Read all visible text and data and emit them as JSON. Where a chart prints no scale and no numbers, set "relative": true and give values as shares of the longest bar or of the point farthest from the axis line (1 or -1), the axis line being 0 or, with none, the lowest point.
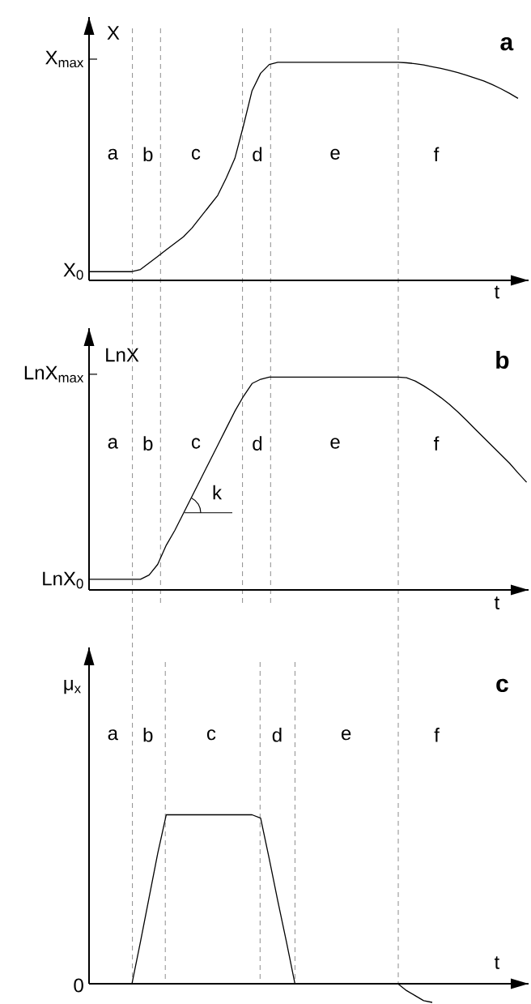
{
  "chart_data": [
    {
      "type": "line",
      "title": "a",
      "xlabel": "t",
      "ylabel": "X",
      "relative": true,
      "grid": "x",
      "categories": [
        null,
        null,
        null,
        null,
        null,
        null,
        null,
        null,
        null,
        null,
        null,
        null,
        null,
        null,
        null,
        null,
        null,
        null,
        null,
        null,
        null,
        null,
        null,
        null,
        null,
        null,
        null,
        null,
        null,
        null,
        null,
        null,
        null,
        null,
        null,
        null,
        null,
        null,
        null,
        null,
        null,
        null,
        null,
        null,
        null,
        null,
        null,
        null,
        null,
        null,
        null,
        null
      ],
      "series": [
        {
          "color": "#000000",
          "values": [
            0.04,
            0.04,
            0.04,
            0.04,
            0.04,
            0.04,
            0.05,
            0.08,
            0.11,
            0.14,
            0.17,
            0.2,
            0.24,
            0.29,
            0.34,
            0.39,
            0.47,
            0.56,
            0.71,
            0.87,
            0.95,
            0.99,
            1,
            1,
            1,
            1,
            1,
            1,
            1,
            1,
            1,
            1,
            1,
            1,
            1,
            1,
            1,
            0.998,
            0.994,
            0.988,
            0.98,
            0.972,
            0.963,
            0.953,
            0.941,
            0.928,
            0.915,
            0.898,
            0.879,
            0.858,
            0.835,
            null
          ]
        }
      ],
      "annotations": [
        "a",
        "b",
        "c",
        "d",
        "e",
        "f",
        "X$_{0}$",
        "X$_{max}$"
      ]
    },
    {
      "type": "line",
      "title": "b",
      "xlabel": "t",
      "ylabel": "LnX",
      "relative": true,
      "grid": "x",
      "categories": [
        null,
        null,
        null,
        null,
        null,
        null,
        null,
        null,
        null,
        null,
        null,
        null,
        null,
        null,
        null,
        null,
        null,
        null,
        null,
        null,
        null,
        null,
        null,
        null,
        null,
        null,
        null,
        null,
        null,
        null,
        null,
        null,
        null,
        null,
        null,
        null,
        null,
        null,
        null,
        null,
        null,
        null,
        null,
        null,
        null,
        null,
        null,
        null,
        null,
        null,
        null,
        null
      ],
      "series": [
        {
          "color": "#000000",
          "values": [
            0.05,
            0.05,
            0.05,
            0.05,
            0.05,
            0.05,
            0.05,
            0.07,
            0.12,
            0.21,
            0.28,
            0.36,
            0.44,
            0.52,
            0.6,
            0.68,
            0.76,
            0.84,
            0.91,
            0.97,
            0.99,
            1,
            1,
            1,
            1,
            1,
            1,
            1,
            1,
            1,
            1,
            1,
            1,
            1,
            1,
            1,
            1,
            0.997,
            0.982,
            0.959,
            0.933,
            0.904,
            0.872,
            0.836,
            0.797,
            0.756,
            0.716,
            0.676,
            0.636,
            0.596,
            0.55,
            0.506
          ]
        }
      ],
      "annotations": [
        "a",
        "b",
        "c",
        "d",
        "e",
        "f",
        "k",
        "LnX$_{0}$",
        "LnX$_{max}$"
      ]
    },
    {
      "type": "line",
      "title": "c",
      "xlabel": "t",
      "ylabel": "μ$_{x}$",
      "relative": true,
      "grid": "x",
      "categories": [
        null,
        null,
        null,
        null,
        null,
        null,
        null,
        null,
        null,
        null,
        null,
        null,
        null,
        null,
        null,
        null,
        null,
        null,
        null,
        null,
        null,
        null,
        null,
        null,
        null,
        null,
        null,
        null,
        null,
        null,
        null,
        null,
        null,
        null,
        null,
        null,
        null,
        null,
        null,
        null,
        null,
        null,
        null,
        null,
        null,
        null,
        null,
        null,
        null,
        null,
        null,
        null
      ],
      "series": [
        {
          "color": "#000000",
          "values": [
            0,
            0,
            0,
            0,
            0,
            0,
            0.25,
            0.51,
            0.77,
            1,
            1,
            1,
            1,
            1,
            1,
            1,
            1,
            1,
            1,
            1,
            0.98,
            0.74,
            0.49,
            0.25,
            0,
            0,
            0,
            0,
            0,
            0,
            0,
            0,
            0,
            0,
            0,
            0,
            0,
            -0.04,
            -0.07,
            -0.1,
            -0.11,
            null,
            null,
            null,
            null,
            null,
            null,
            null,
            null,
            null,
            null,
            null
          ]
        }
      ],
      "annotations": [
        "a",
        "b",
        "c",
        "d",
        "e",
        "f",
        "0"
      ]
    }
  ]
}
